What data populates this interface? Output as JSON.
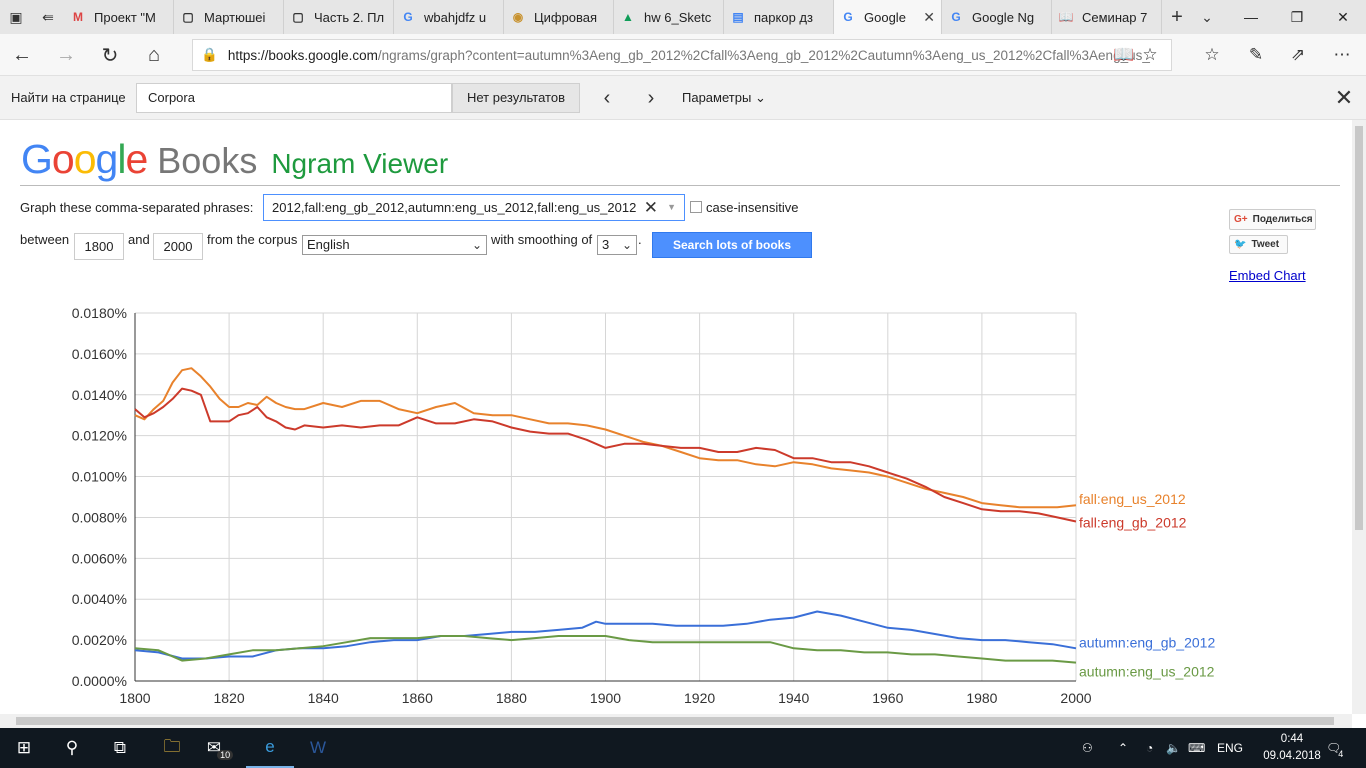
{
  "browser": {
    "tabs": [
      {
        "title": "Проект \"М",
        "icon": "gmail-icon",
        "active": false
      },
      {
        "title": "Мартюшеі",
        "icon": "page-icon",
        "active": false
      },
      {
        "title": "Часть 2. Пл",
        "icon": "page-icon",
        "active": false
      },
      {
        "title": "wbahjdfz u",
        "icon": "google-icon",
        "active": false
      },
      {
        "title": "Цифровая",
        "icon": "cybermap-icon",
        "active": false
      },
      {
        "title": "hw 6_Sketc",
        "icon": "drive-icon",
        "active": false
      },
      {
        "title": "паркор дз",
        "icon": "docs-icon",
        "active": false
      },
      {
        "title": "Google",
        "icon": "google-icon",
        "active": true
      },
      {
        "title": "Google Ng",
        "icon": "google-icon",
        "active": false
      },
      {
        "title": "Семинар 7",
        "icon": "book-icon",
        "active": false
      }
    ],
    "url_host": "https://books.google.com",
    "url_rest": "/ngrams/graph?content=autumn%3Aeng_gb_2012%2Cfall%3Aeng_gb_2012%2Cautumn%3Aeng_us_2012%2Cfall%3Aeng_us_"
  },
  "findbar": {
    "label": "Найти на странице",
    "query": "Corpora",
    "result": "Нет результатов",
    "options": "Параметры"
  },
  "page": {
    "logo_google": "Google",
    "logo_books": "Books",
    "logo_ngram": "Ngram Viewer",
    "phrases_label": "Graph these comma-separated phrases:",
    "phrases_value": "2012,fall:eng_gb_2012,autumn:eng_us_2012,fall:eng_us_2012",
    "case_insensitive": "case-insensitive",
    "between": "between",
    "year_start": "1800",
    "and": "and",
    "year_end": "2000",
    "from_corpus": "from the corpus",
    "corpus": "English",
    "with_smoothing": "with smoothing of",
    "smoothing": "3",
    "period": ".",
    "search_button": "Search lots of books",
    "share": "Поделиться",
    "tweet": "Tweet",
    "embed": "Embed Chart"
  },
  "chart_data": {
    "type": "line",
    "xlim": [
      1800,
      2000
    ],
    "ylim": [
      0,
      0.018
    ],
    "y_ticks": [
      "0.0000%",
      "0.0020%",
      "0.0040%",
      "0.0060%",
      "0.0080%",
      "0.0100%",
      "0.0120%",
      "0.0140%",
      "0.0160%",
      "0.0180%"
    ],
    "x_ticks": [
      "1800",
      "1820",
      "1840",
      "1860",
      "1880",
      "1900",
      "1920",
      "1940",
      "1960",
      "1980",
      "2000"
    ],
    "grid": true,
    "series": [
      {
        "name": "fall:eng_us_2012",
        "color": "#e8822c",
        "x": [
          1800,
          1802,
          1804,
          1806,
          1808,
          1810,
          1812,
          1814,
          1816,
          1818,
          1820,
          1822,
          1824,
          1826,
          1828,
          1830,
          1832,
          1834,
          1836,
          1840,
          1844,
          1848,
          1852,
          1856,
          1860,
          1864,
          1868,
          1872,
          1876,
          1880,
          1884,
          1888,
          1892,
          1896,
          1900,
          1904,
          1908,
          1912,
          1916,
          1920,
          1924,
          1928,
          1932,
          1936,
          1940,
          1944,
          1948,
          1952,
          1956,
          1960,
          1964,
          1968,
          1972,
          1976,
          1980,
          1984,
          1988,
          1992,
          1996,
          2000
        ],
        "y": [
          0.013,
          0.0128,
          0.0133,
          0.0137,
          0.0146,
          0.0152,
          0.0153,
          0.0149,
          0.0144,
          0.0138,
          0.0134,
          0.0134,
          0.0136,
          0.0135,
          0.0139,
          0.0136,
          0.0134,
          0.0133,
          0.0133,
          0.0136,
          0.0134,
          0.0137,
          0.0137,
          0.0133,
          0.0131,
          0.0134,
          0.0136,
          0.0131,
          0.013,
          0.013,
          0.0128,
          0.0126,
          0.0126,
          0.0125,
          0.0123,
          0.012,
          0.0117,
          0.0115,
          0.0112,
          0.0109,
          0.0108,
          0.0108,
          0.0106,
          0.0105,
          0.0107,
          0.0106,
          0.0104,
          0.0103,
          0.0102,
          0.01,
          0.0097,
          0.0094,
          0.0092,
          0.009,
          0.0087,
          0.0086,
          0.0085,
          0.0085,
          0.0085,
          0.0086
        ]
      },
      {
        "name": "fall:eng_gb_2012",
        "color": "#cc3a2b",
        "x": [
          1800,
          1802,
          1804,
          1806,
          1808,
          1810,
          1812,
          1814,
          1816,
          1818,
          1820,
          1822,
          1824,
          1826,
          1828,
          1830,
          1832,
          1834,
          1836,
          1840,
          1844,
          1848,
          1852,
          1856,
          1860,
          1864,
          1868,
          1872,
          1876,
          1880,
          1884,
          1888,
          1892,
          1896,
          1900,
          1904,
          1908,
          1912,
          1916,
          1920,
          1924,
          1928,
          1932,
          1936,
          1940,
          1944,
          1948,
          1952,
          1956,
          1960,
          1964,
          1968,
          1972,
          1976,
          1980,
          1984,
          1988,
          1992,
          1996,
          2000
        ],
        "y": [
          0.0133,
          0.0129,
          0.0131,
          0.0134,
          0.0138,
          0.0143,
          0.0142,
          0.014,
          0.0127,
          0.0127,
          0.0127,
          0.013,
          0.0131,
          0.0134,
          0.0129,
          0.0127,
          0.0124,
          0.0123,
          0.0125,
          0.0124,
          0.0125,
          0.0124,
          0.0125,
          0.0125,
          0.0129,
          0.0126,
          0.0126,
          0.0128,
          0.0127,
          0.0124,
          0.0122,
          0.0121,
          0.0121,
          0.0118,
          0.0114,
          0.0116,
          0.0116,
          0.0115,
          0.0114,
          0.0114,
          0.0112,
          0.0112,
          0.0114,
          0.0113,
          0.0109,
          0.0109,
          0.0107,
          0.0107,
          0.0105,
          0.0102,
          0.0099,
          0.0095,
          0.009,
          0.0087,
          0.0084,
          0.0083,
          0.0083,
          0.0082,
          0.008,
          0.0078
        ]
      },
      {
        "name": "autumn:eng_gb_2012",
        "color": "#3a6fd8",
        "x": [
          1800,
          1805,
          1810,
          1815,
          1820,
          1825,
          1830,
          1835,
          1840,
          1845,
          1850,
          1855,
          1860,
          1865,
          1870,
          1875,
          1880,
          1885,
          1890,
          1895,
          1898,
          1900,
          1905,
          1910,
          1915,
          1920,
          1925,
          1930,
          1935,
          1940,
          1945,
          1950,
          1955,
          1960,
          1965,
          1970,
          1975,
          1980,
          1985,
          1990,
          1995,
          2000
        ],
        "y": [
          0.0015,
          0.0014,
          0.0011,
          0.0011,
          0.0012,
          0.0012,
          0.0015,
          0.0016,
          0.0016,
          0.0017,
          0.0019,
          0.002,
          0.002,
          0.0022,
          0.0022,
          0.0023,
          0.0024,
          0.0024,
          0.0025,
          0.0026,
          0.0029,
          0.0028,
          0.0028,
          0.0028,
          0.0027,
          0.0027,
          0.0027,
          0.0028,
          0.003,
          0.0031,
          0.0034,
          0.0032,
          0.0029,
          0.0026,
          0.0025,
          0.0023,
          0.0021,
          0.002,
          0.002,
          0.0019,
          0.0018,
          0.0016
        ]
      },
      {
        "name": "autumn:eng_us_2012",
        "color": "#6a9a45",
        "x": [
          1800,
          1805,
          1810,
          1815,
          1820,
          1825,
          1830,
          1835,
          1840,
          1845,
          1850,
          1855,
          1860,
          1865,
          1870,
          1875,
          1880,
          1885,
          1890,
          1895,
          1900,
          1905,
          1910,
          1915,
          1920,
          1925,
          1930,
          1935,
          1940,
          1945,
          1950,
          1955,
          1960,
          1965,
          1970,
          1975,
          1980,
          1985,
          1990,
          1995,
          2000
        ],
        "y": [
          0.0016,
          0.0015,
          0.001,
          0.0011,
          0.0013,
          0.0015,
          0.0015,
          0.0016,
          0.0017,
          0.0019,
          0.0021,
          0.0021,
          0.0021,
          0.0022,
          0.0022,
          0.0021,
          0.002,
          0.0021,
          0.0022,
          0.0022,
          0.0022,
          0.002,
          0.0019,
          0.0019,
          0.0019,
          0.0019,
          0.0019,
          0.0019,
          0.0016,
          0.0015,
          0.0015,
          0.0014,
          0.0014,
          0.0013,
          0.0013,
          0.0012,
          0.0011,
          0.001,
          0.001,
          0.001,
          0.0009
        ]
      }
    ]
  },
  "taskbar": {
    "mail_badge": "10",
    "language": "ENG",
    "time": "0:44",
    "date": "09.04.2018",
    "notifications": "4"
  }
}
